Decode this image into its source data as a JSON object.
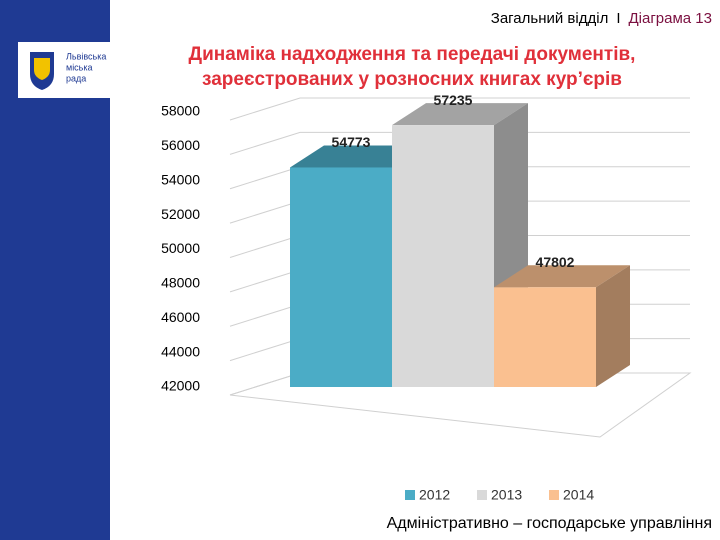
{
  "header": {
    "section": "Загальний відділ",
    "separator": "І",
    "slide": "Діаграма 13"
  },
  "logo": {
    "lines": [
      "Львівська",
      "міська",
      "рада"
    ]
  },
  "footer": "Адміністративно – господарське управління",
  "chart_data": {
    "type": "bar3d",
    "title": [
      "Динаміка надходження та передачі документів,",
      "зареєстрованих у розносних книгах кур’єрів"
    ],
    "series": [
      {
        "name": "2012",
        "color": "#4bacc6",
        "values": [
          54773
        ]
      },
      {
        "name": "2013",
        "color": "#d9d9d9",
        "values": [
          57235
        ]
      },
      {
        "name": "2014",
        "color": "#fac090",
        "values": [
          47802
        ]
      }
    ],
    "ylim": [
      42000,
      58000
    ],
    "yticks": [
      42000,
      44000,
      46000,
      48000,
      50000,
      52000,
      54000,
      56000,
      58000
    ],
    "grid": true,
    "legend": "bottom"
  }
}
